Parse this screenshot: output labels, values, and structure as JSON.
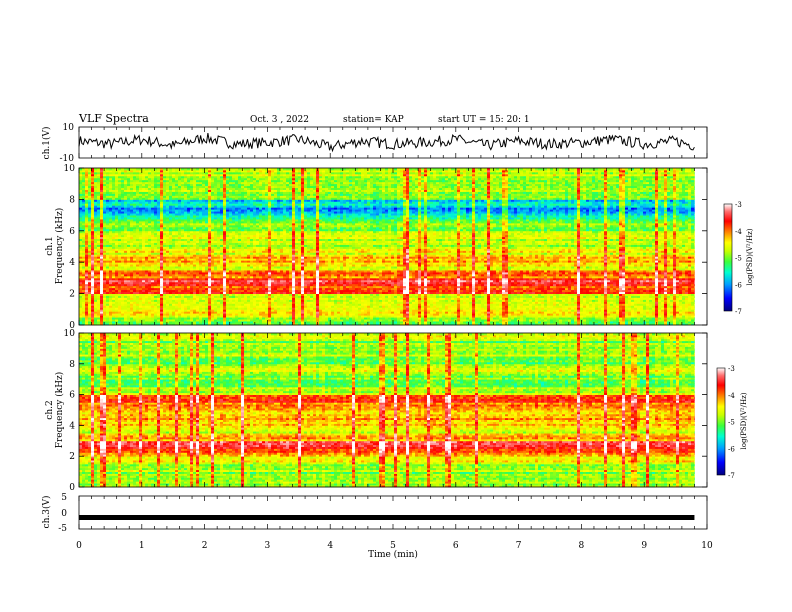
{
  "header": {
    "title": "VLF Spectra",
    "date": "Oct. 3 , 2022",
    "station": "station= KAP",
    "start": "start UT = 15: 20: 1"
  },
  "colorbar_label": "log(PSD)(V²/Hz)",
  "colors": {
    "background": "#ffffff",
    "colormap": [
      "#00007f",
      "#0000ff",
      "#00a0ff",
      "#00ffd0",
      "#3cff3c",
      "#c8ff00",
      "#ffff00",
      "#ff8000",
      "#ff0000",
      "#ff6e6e",
      "#ffffff"
    ]
  },
  "chart_data": [
    {
      "type": "line",
      "name": "ch1-waveform",
      "ylabel": "ch.1(V)",
      "ylim": [
        -10,
        10
      ],
      "yticks": [
        "10",
        "-10"
      ],
      "xlim": [
        0,
        10
      ],
      "x": [
        0.0,
        0.5,
        1.0,
        1.5,
        2.0,
        2.5,
        3.0,
        3.5,
        4.0,
        4.5,
        5.0,
        5.5,
        6.0,
        6.5,
        7.0,
        7.5,
        8.0,
        8.5,
        9.0,
        9.5,
        9.8
      ],
      "values": [
        1,
        -1,
        2,
        -2,
        3,
        -1,
        0,
        2,
        -3,
        1,
        -1,
        0,
        2,
        -2,
        1,
        -1,
        0,
        2,
        -1,
        1,
        -2
      ]
    },
    {
      "type": "heatmap",
      "name": "ch1-spectrogram",
      "ylabel": "ch.1\nFrequency (kHz)",
      "xlim": [
        0,
        10
      ],
      "ylim": [
        0,
        10
      ],
      "yticks": [
        "0",
        "2",
        "4",
        "6",
        "8",
        "10"
      ],
      "data_end_min": 9.8,
      "colorbar": {
        "range": [
          -7,
          -3
        ],
        "ticks": [
          "-3",
          "-4",
          "-5",
          "-6",
          "-7"
        ],
        "label": "log(PSD)(V²/Hz)"
      },
      "freq_khz": [
        0.25,
        0.75,
        1.25,
        1.75,
        2.25,
        2.75,
        3.25,
        3.75,
        4.25,
        4.75,
        5.25,
        5.75,
        6.25,
        6.75,
        7.25,
        7.75,
        8.25,
        8.75,
        9.25,
        9.75
      ],
      "log_psd": [
        -5.3,
        -4.6,
        -5.0,
        -4.8,
        -4.0,
        -3.6,
        -4.2,
        -4.7,
        -4.4,
        -4.8,
        -5.1,
        -4.9,
        -5.2,
        -5.6,
        -6.1,
        -5.9,
        -5.3,
        -5.0,
        -5.1,
        -4.9
      ],
      "colors": [
        "#ffff00",
        "#ff8000",
        "#3cff3c",
        "#c8ff00"
      ]
    },
    {
      "type": "heatmap",
      "name": "ch2-spectrogram",
      "ylabel": "ch.2\nFrequency (kHz)",
      "xlim": [
        0,
        10
      ],
      "ylim": [
        0,
        10
      ],
      "yticks": [
        "0",
        "2",
        "4",
        "6",
        "8",
        "10"
      ],
      "data_end_min": 9.8,
      "colorbar": {
        "range": [
          -7,
          -3
        ],
        "ticks": [
          "-3",
          "-4",
          "-5",
          "-6",
          "-7"
        ],
        "label": "log(PSD)(V²/Hz)"
      },
      "freq_khz": [
        0.25,
        0.75,
        1.25,
        1.75,
        2.25,
        2.75,
        3.25,
        3.75,
        4.25,
        4.75,
        5.25,
        5.75,
        6.25,
        6.75,
        7.25,
        7.75,
        8.25,
        8.75,
        9.25,
        9.75
      ],
      "log_psd": [
        -5.2,
        -5.3,
        -5.0,
        -4.7,
        -4.2,
        -3.6,
        -4.3,
        -4.8,
        -4.4,
        -4.6,
        -4.1,
        -3.8,
        -4.9,
        -5.3,
        -5.2,
        -4.9,
        -5.3,
        -5.0,
        -5.2,
        -4.9
      ]
    },
    {
      "type": "line",
      "name": "ch3-waveform",
      "ylabel": "ch.3(V)",
      "ylim": [
        -5,
        5
      ],
      "yticks": [
        "5",
        "0",
        "-5"
      ],
      "xlim": [
        0,
        10
      ],
      "x": [
        0,
        9.8
      ],
      "values": [
        -1.5,
        -1.5
      ],
      "xlabel": "Time (min)",
      "xticks": [
        "0",
        "1",
        "2",
        "3",
        "4",
        "5",
        "6",
        "7",
        "8",
        "9",
        "10"
      ]
    }
  ]
}
